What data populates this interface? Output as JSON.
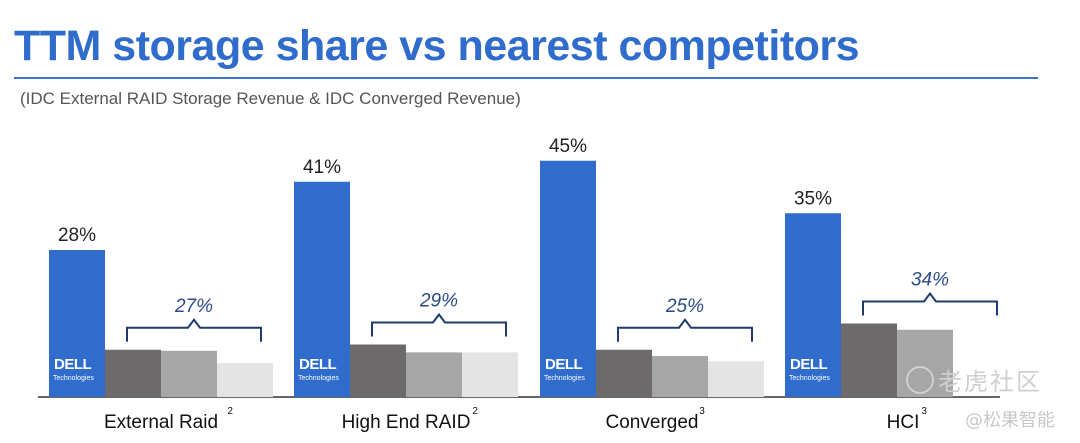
{
  "header": {
    "title": "TTM storage share vs nearest competitors",
    "subtitle": "(IDC External RAID Storage Revenue & IDC Converged Revenue)"
  },
  "logo": {
    "brand": "DELL",
    "sub": "Technologies"
  },
  "watermark": {
    "text": "老虎社区",
    "sub": "@松果智能"
  },
  "colors": {
    "dell": "#2f6ccc",
    "competitor_1": "#6c6a6b",
    "competitor_2": "#a6a6a6",
    "competitor_3": "#e4e4e4",
    "bracket": "#1f3a6e",
    "bracket_label": "#2a4a8a"
  },
  "chart_data": {
    "type": "bar",
    "title": "TTM storage share vs nearest competitors",
    "subtitle": "(IDC External RAID Storage Revenue & IDC Converged Revenue)",
    "categories": [
      "External Raid",
      "High End RAID",
      "Converged",
      "HCI"
    ],
    "footnotes": [
      "2",
      "2",
      "3",
      "3"
    ],
    "ylim": [
      0,
      50
    ],
    "grid": false,
    "series": [
      {
        "name": "DELL",
        "values": [
          28,
          41,
          45,
          35
        ],
        "labels": [
          "28%",
          "41%",
          "45%",
          "35%"
        ]
      },
      {
        "values": [
          9,
          10,
          9,
          14
        ]
      },
      {
        "values": [
          8.8,
          8.5,
          7.8,
          12.8
        ]
      },
      {
        "values": [
          6.5,
          8.5,
          6.8,
          null
        ]
      }
    ],
    "competitor_totals": [
      "27%",
      "29%",
      "25%",
      "34%"
    ]
  }
}
